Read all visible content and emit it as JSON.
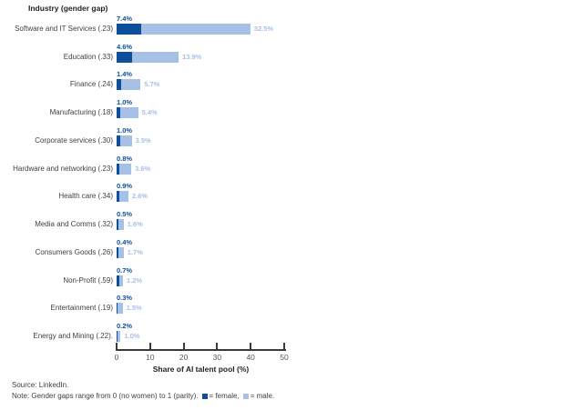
{
  "chart_data": {
    "type": "bar",
    "orientation": "horizontal",
    "stacked": true,
    "title": "Industry (gender gap)",
    "xlabel": "Share of AI talent pool (%)",
    "ylabel": "",
    "xlim": [
      0,
      50
    ],
    "x_ticks": [
      0,
      10,
      20,
      30,
      40,
      50
    ],
    "grid": false,
    "legend_position": "footer-note",
    "categories": [
      "Software and IT Services (.23)",
      "Education (.33)",
      "Finance (.24)",
      "Manufacturing (.18)",
      "Corporate services (.30)",
      "Hardware and networking (.23)",
      "Health care (.34)",
      "Media and Comms (.32)",
      "Consumers Goods (.26)",
      "Non-Profit (.59)",
      "Entertainment (.19)",
      "Energy and Mining (.22)."
    ],
    "series": [
      {
        "name": "female",
        "color": "#0e4f9c",
        "values": [
          7.4,
          4.6,
          1.4,
          1.0,
          1.0,
          0.8,
          0.9,
          0.5,
          0.4,
          0.7,
          0.3,
          0.2
        ]
      },
      {
        "name": "male",
        "color": "#a7c0e5",
        "values": [
          32.5,
          13.9,
          5.7,
          5.4,
          3.5,
          3.6,
          2.6,
          1.6,
          1.7,
          1.2,
          1.5,
          1.0
        ]
      }
    ],
    "value_label_suffix": "%"
  },
  "footer": {
    "source": "Source: LinkedIn.",
    "note_prefix": "Note: Gender gaps range from 0 (no women) to 1 (parity).",
    "legend_female": "= female,",
    "legend_male": "= male."
  },
  "colors": {
    "female": "#0e4f9c",
    "male": "#a7c0e5",
    "axis": "#3a3a3a",
    "tick_label": "#58595b",
    "category_text": "#414042",
    "title_text": "#231f20"
  }
}
